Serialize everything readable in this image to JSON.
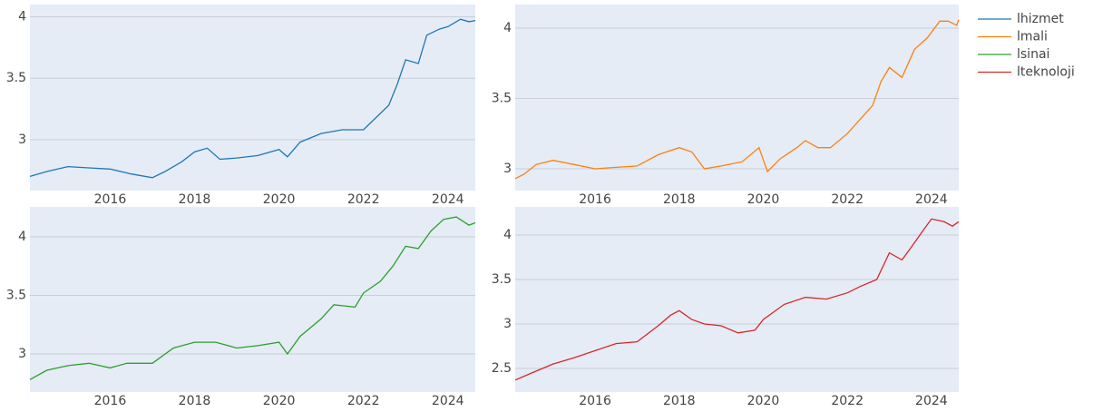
{
  "chart_data": [
    {
      "type": "line",
      "x": [
        2014.1,
        2014.5,
        2015,
        2015.5,
        2016,
        2016.5,
        2017,
        2017.3,
        2017.7,
        2018,
        2018.3,
        2018.6,
        2019,
        2019.5,
        2020,
        2020.2,
        2020.5,
        2021,
        2021.5,
        2022,
        2022.3,
        2022.6,
        2022.8,
        2023,
        2023.3,
        2023.5,
        2023.8,
        2024,
        2024.3,
        2024.5,
        2024.65
      ],
      "series": [
        {
          "name": "lhizmet",
          "color": "#1f77b4",
          "values": [
            2.7,
            2.74,
            2.78,
            2.77,
            2.76,
            2.72,
            2.69,
            2.74,
            2.82,
            2.9,
            2.93,
            2.84,
            2.85,
            2.87,
            2.92,
            2.86,
            2.98,
            3.05,
            3.08,
            3.08,
            3.18,
            3.28,
            3.45,
            3.65,
            3.62,
            3.85,
            3.9,
            3.92,
            3.98,
            3.96,
            3.97
          ]
        }
      ],
      "xlim": [
        2014.1,
        2024.65
      ],
      "ylim": [
        2.585,
        4.1
      ],
      "xticks": [
        2016,
        2018,
        2020,
        2022,
        2024
      ],
      "yticks": [
        3,
        3.5,
        4
      ],
      "grid": true
    },
    {
      "type": "line",
      "x": [
        2014.1,
        2014.3,
        2014.6,
        2015,
        2015.5,
        2016,
        2016.5,
        2017,
        2017.5,
        2018,
        2018.3,
        2018.6,
        2019,
        2019.5,
        2019.9,
        2020.1,
        2020.4,
        2020.8,
        2021,
        2021.3,
        2021.6,
        2022,
        2022.3,
        2022.6,
        2022.8,
        2023,
        2023.3,
        2023.6,
        2023.9,
        2024.2,
        2024.4,
        2024.6,
        2024.65
      ],
      "series": [
        {
          "name": "lmali",
          "color": "#ff7f0e",
          "values": [
            2.93,
            2.96,
            3.03,
            3.06,
            3.03,
            3.0,
            3.01,
            3.02,
            3.1,
            3.15,
            3.12,
            3.0,
            3.02,
            3.05,
            3.15,
            2.98,
            3.07,
            3.15,
            3.2,
            3.15,
            3.15,
            3.25,
            3.35,
            3.45,
            3.62,
            3.72,
            3.65,
            3.85,
            3.93,
            4.05,
            4.05,
            4.02,
            4.06
          ]
        }
      ],
      "xlim": [
        2014.1,
        2024.65
      ],
      "ylim": [
        2.845,
        4.168
      ],
      "xticks": [
        2016,
        2018,
        2020,
        2022,
        2024
      ],
      "yticks": [
        3,
        3.5,
        4
      ],
      "grid": true
    },
    {
      "type": "line",
      "x": [
        2014.1,
        2014.5,
        2015,
        2015.5,
        2016,
        2016.4,
        2017,
        2017.5,
        2018,
        2018.5,
        2019,
        2019.5,
        2020,
        2020.2,
        2020.5,
        2021,
        2021.3,
        2021.8,
        2022,
        2022.4,
        2022.7,
        2023,
        2023.3,
        2023.6,
        2023.9,
        2024.2,
        2024.5,
        2024.65
      ],
      "series": [
        {
          "name": "lsinai",
          "color": "#2ca02c",
          "values": [
            2.78,
            2.86,
            2.9,
            2.92,
            2.88,
            2.92,
            2.92,
            3.05,
            3.1,
            3.1,
            3.05,
            3.07,
            3.1,
            3.0,
            3.15,
            3.3,
            3.42,
            3.4,
            3.52,
            3.62,
            3.75,
            3.92,
            3.9,
            4.05,
            4.15,
            4.17,
            4.1,
            4.12
          ]
        }
      ],
      "xlim": [
        2014.1,
        2024.65
      ],
      "ylim": [
        2.674,
        4.256
      ],
      "xticks": [
        2016,
        2018,
        2020,
        2022,
        2024
      ],
      "yticks": [
        3,
        3.5,
        4
      ],
      "grid": true
    },
    {
      "type": "line",
      "x": [
        2014.1,
        2014.5,
        2015,
        2015.5,
        2016,
        2016.5,
        2017,
        2017.5,
        2017.8,
        2018,
        2018.3,
        2018.6,
        2019,
        2019.4,
        2019.8,
        2020,
        2020.5,
        2021,
        2021.5,
        2022,
        2022.3,
        2022.7,
        2023,
        2023.3,
        2023.5,
        2023.8,
        2024,
        2024.3,
        2024.5,
        2024.65
      ],
      "series": [
        {
          "name": "lteknoloji",
          "color": "#d62728",
          "values": [
            2.37,
            2.45,
            2.55,
            2.62,
            2.7,
            2.78,
            2.8,
            2.98,
            3.1,
            3.15,
            3.05,
            3.0,
            2.98,
            2.9,
            2.93,
            3.05,
            3.22,
            3.3,
            3.28,
            3.35,
            3.42,
            3.5,
            3.8,
            3.72,
            3.85,
            4.05,
            4.18,
            4.15,
            4.1,
            4.15
          ]
        }
      ],
      "xlim": [
        2014.1,
        2024.65
      ],
      "ylim": [
        2.235,
        4.316
      ],
      "xticks": [
        2016,
        2018,
        2020,
        2022,
        2024
      ],
      "yticks": [
        2.5,
        3,
        3.5,
        4
      ],
      "grid": true
    }
  ]
}
